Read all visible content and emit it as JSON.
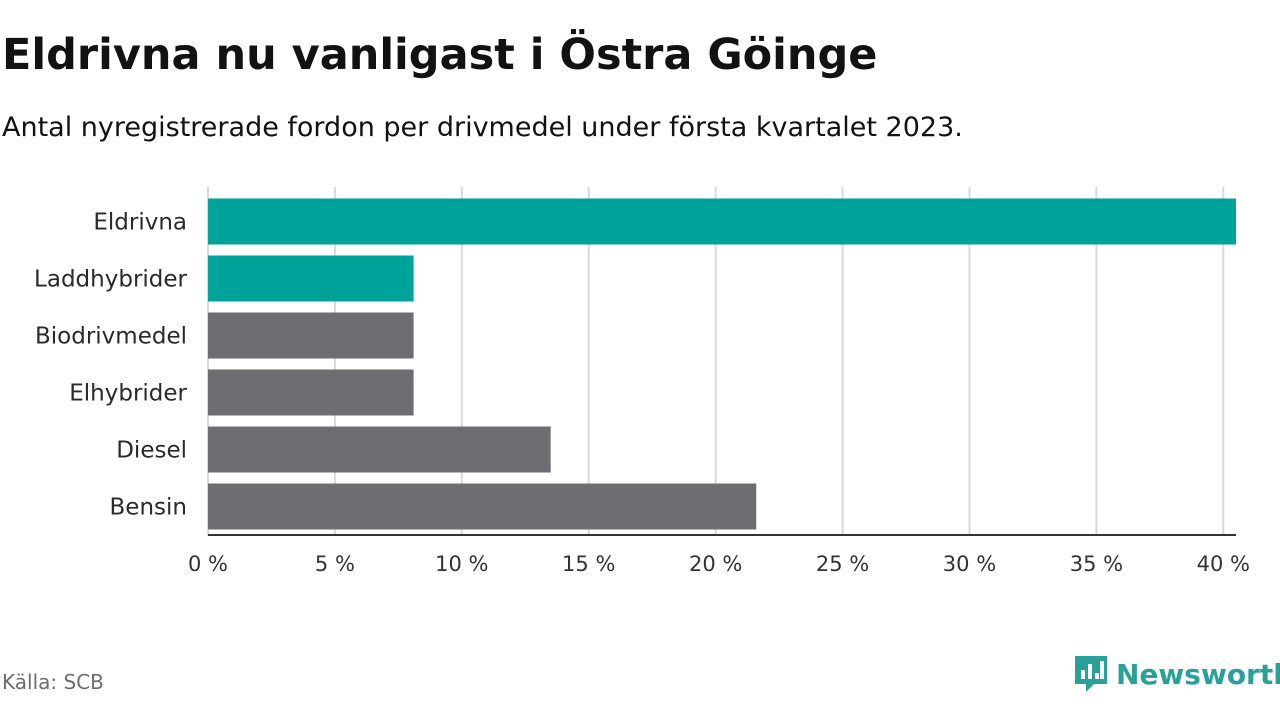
{
  "header": {
    "title": "Eldrivna nu vanligast i Östra Göinge",
    "subtitle": "Antal nyregistrerade fordon per drivmedel under första kvartalet 2023."
  },
  "footer": {
    "source": "Källa: SCB",
    "brand": "Newsworthy",
    "brand_icon": "newsworthy-logo-icon",
    "brand_color": "#2aa198"
  },
  "chart_data": {
    "type": "bar",
    "orientation": "horizontal",
    "categories": [
      "Eldrivna",
      "Laddhybrider",
      "Biodrivmedel",
      "Elhybrider",
      "Diesel",
      "Bensin"
    ],
    "values": [
      40.5,
      8.1,
      8.1,
      8.1,
      13.5,
      21.6
    ],
    "highlight": [
      true,
      true,
      false,
      false,
      false,
      false
    ],
    "colors": {
      "highlight": "#00a39a",
      "default": "#6e6d72",
      "grid": "#d9d9d9",
      "axis": "#333333"
    },
    "xlim": [
      0,
      40.5
    ],
    "xticks": [
      0,
      5,
      10,
      15,
      20,
      25,
      30,
      35,
      40
    ],
    "xtick_labels": [
      "0 %",
      "5 %",
      "10 %",
      "15 %",
      "20 %",
      "25 %",
      "30 %",
      "35 %",
      "40 %"
    ],
    "grid": true
  }
}
